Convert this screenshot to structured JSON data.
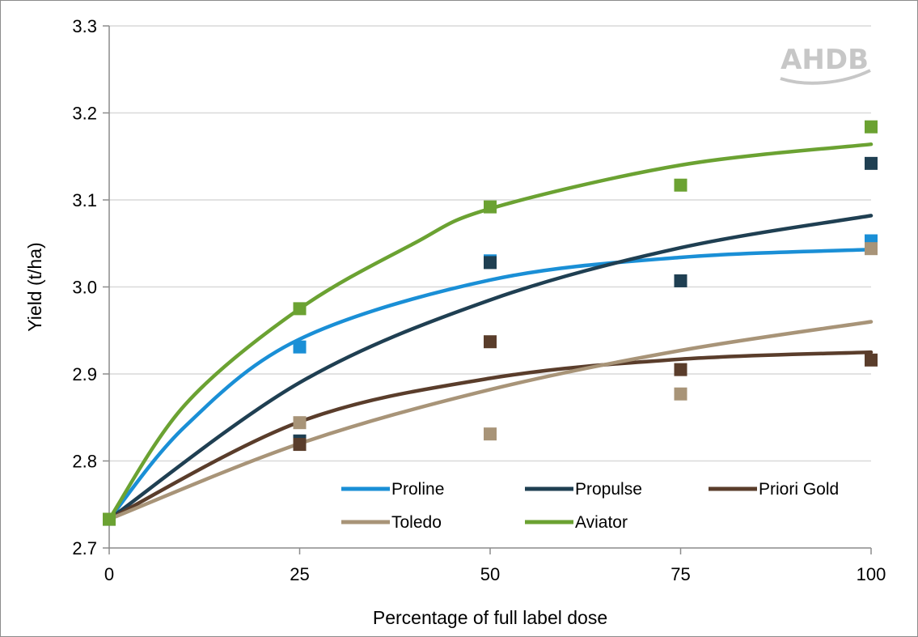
{
  "chart_data": {
    "type": "scatter",
    "xlabel": "Percentage of full label dose",
    "ylabel": "Yield (t/ha)",
    "xlim": [
      0,
      100
    ],
    "ylim": [
      2.7,
      3.3
    ],
    "x_ticks": [
      "0",
      "25",
      "50",
      "75",
      "100"
    ],
    "y_ticks": [
      "2.7",
      "2.8",
      "2.9",
      "3.0",
      "3.1",
      "3.2",
      "3.3"
    ],
    "grid": "horizontal",
    "legend_position": "bottom-right inside plot",
    "logo": "AHDB",
    "series": [
      {
        "name": "Proline",
        "color": "#1a8fd6",
        "points": [
          [
            0,
            2.733
          ],
          [
            25,
            2.931
          ],
          [
            50,
            3.03
          ],
          [
            75,
            null
          ],
          [
            100,
            3.053
          ]
        ],
        "fit": [
          [
            0,
            2.733
          ],
          [
            10,
            2.84
          ],
          [
            25,
            2.94
          ],
          [
            50,
            3.008
          ],
          [
            75,
            3.034
          ],
          [
            100,
            3.043
          ]
        ]
      },
      {
        "name": "Propulse",
        "color": "#1f3f52",
        "points": [
          [
            0,
            2.733
          ],
          [
            25,
            2.823
          ],
          [
            50,
            3.028
          ],
          [
            75,
            3.007
          ],
          [
            100,
            3.142
          ]
        ],
        "fit": [
          [
            0,
            2.733
          ],
          [
            25,
            2.89
          ],
          [
            50,
            2.985
          ],
          [
            75,
            3.045
          ],
          [
            100,
            3.082
          ]
        ]
      },
      {
        "name": "Priori Gold",
        "color": "#5a3d2b",
        "points": [
          [
            0,
            2.733
          ],
          [
            25,
            2.819
          ],
          [
            50,
            2.937
          ],
          [
            75,
            2.905
          ],
          [
            100,
            2.916
          ]
        ],
        "fit": [
          [
            0,
            2.733
          ],
          [
            25,
            2.845
          ],
          [
            50,
            2.895
          ],
          [
            75,
            2.917
          ],
          [
            100,
            2.925
          ]
        ]
      },
      {
        "name": "Toledo",
        "color": "#a89478",
        "points": [
          [
            0,
            2.733
          ],
          [
            25,
            2.844
          ],
          [
            50,
            2.831
          ],
          [
            75,
            2.877
          ],
          [
            100,
            3.044
          ]
        ],
        "fit": [
          [
            0,
            2.733
          ],
          [
            25,
            2.82
          ],
          [
            50,
            2.882
          ],
          [
            75,
            2.927
          ],
          [
            100,
            2.96
          ]
        ]
      },
      {
        "name": "Aviator",
        "color": "#6ba232",
        "points": [
          [
            0,
            2.733
          ],
          [
            25,
            2.975
          ],
          [
            50,
            3.092
          ],
          [
            75,
            3.117
          ],
          [
            100,
            3.184
          ]
        ],
        "fit": [
          [
            0,
            2.733
          ],
          [
            10,
            2.865
          ],
          [
            25,
            2.975
          ],
          [
            40,
            3.05
          ],
          [
            50,
            3.09
          ],
          [
            75,
            3.14
          ],
          [
            100,
            3.164
          ]
        ]
      }
    ]
  }
}
